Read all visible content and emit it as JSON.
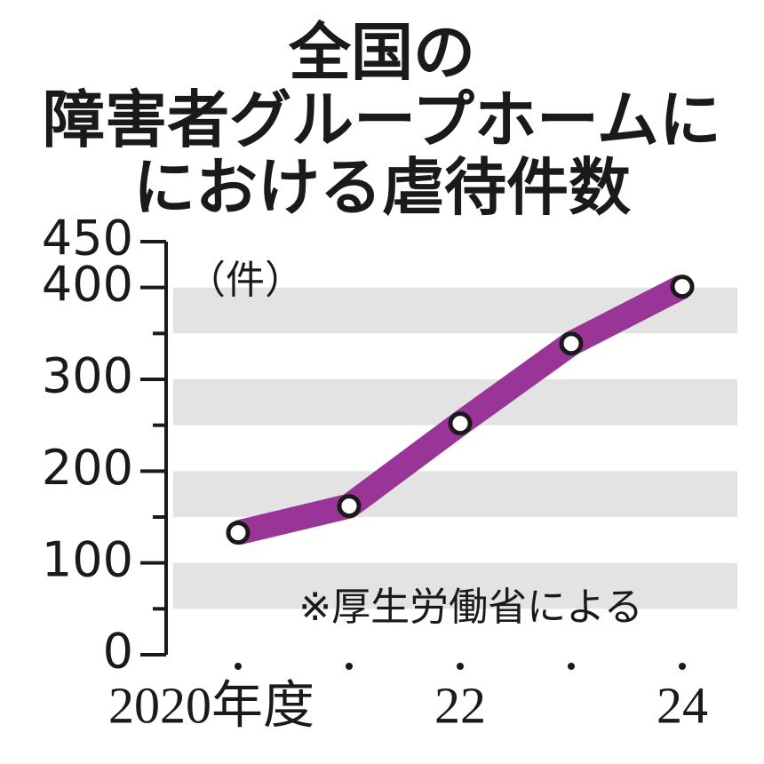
{
  "chart_data": {
    "type": "line",
    "title": [
      "全国の",
      "障害者グループホームに",
      "における虐待件数"
    ],
    "unit": "（件）",
    "note": "※厚生労働省による",
    "categories": [
      "2020年度",
      null,
      "22",
      null,
      "24"
    ],
    "series": [
      {
        "color": "#9a3598",
        "values": [
          133,
          162,
          252,
          339,
          401
        ]
      }
    ],
    "ylim": [
      0,
      450
    ],
    "yticks": [
      0,
      100,
      200,
      300,
      400,
      450
    ],
    "minor_yticks": [
      50,
      150,
      250,
      350
    ],
    "grid": true
  }
}
